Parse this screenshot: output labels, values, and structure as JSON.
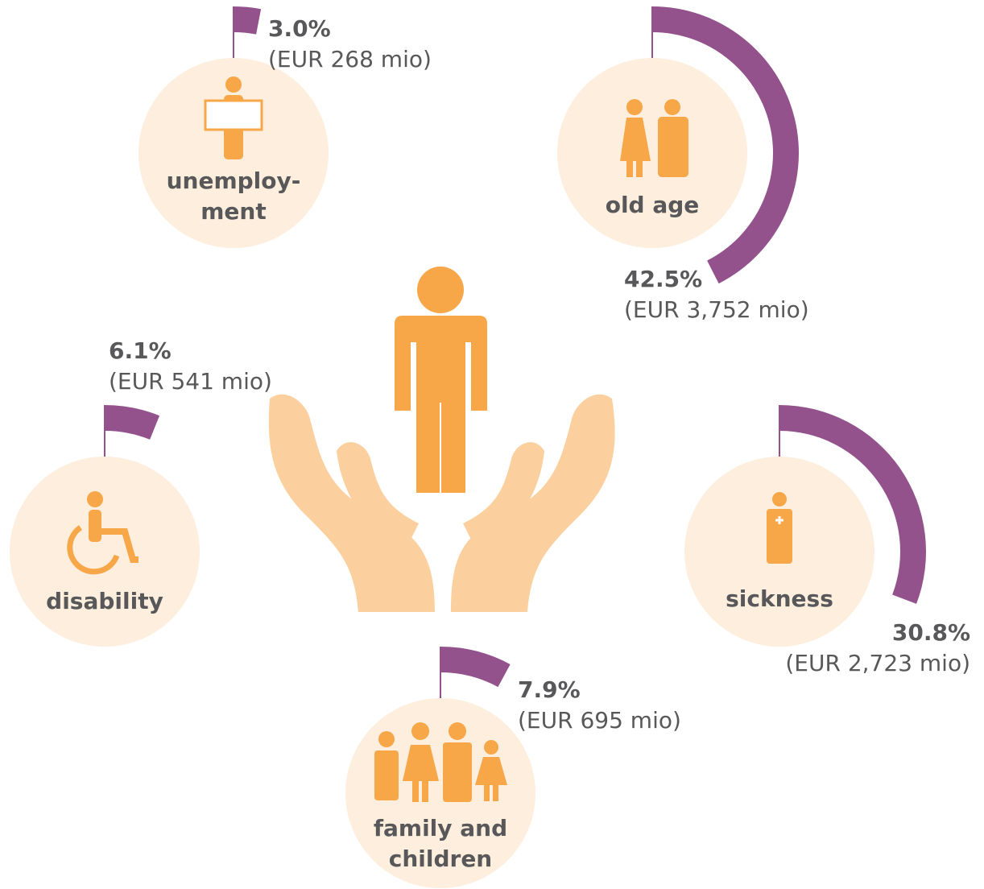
{
  "chart_data": {
    "type": "radial-flag",
    "categories": [
      [
        "unemploy-",
        "ment"
      ],
      [
        "old age"
      ],
      [
        "disability"
      ],
      [
        "sickness"
      ],
      [
        "family and",
        "children"
      ]
    ],
    "values": [
      3.0,
      42.5,
      6.1,
      30.8,
      7.9
    ],
    "value_labels": [
      "3.0%",
      "42.5%",
      "6.1%",
      "30.8%",
      "7.9%"
    ],
    "amounts": [
      "(EUR 268 mio)",
      "(EUR 3,752 mio)",
      "(EUR 541 mio)",
      "(EUR 2,723 mio)",
      "(EUR 695 mio)"
    ],
    "color": "#93528c"
  }
}
